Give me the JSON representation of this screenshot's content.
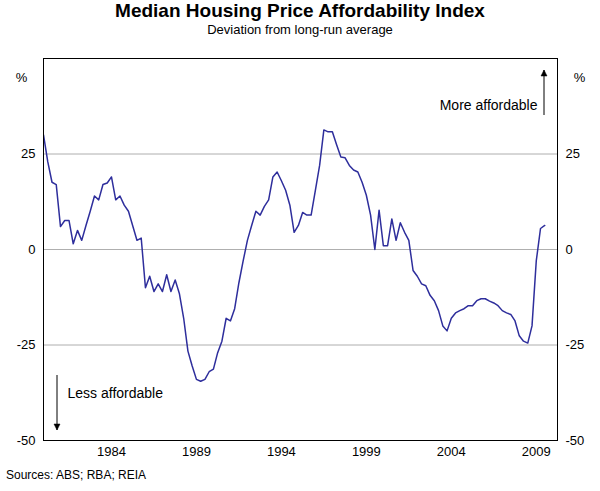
{
  "chart_data": {
    "type": "line",
    "title": "Median Housing Price Affordability Index",
    "subtitle": "Deviation from long-run average",
    "y_label": "%",
    "annotations": [
      "More affordable",
      "Less affordable"
    ],
    "source": "Sources: ABS; RBA; REIA",
    "xlim": [
      1980,
      2010.25
    ],
    "xticks": [
      1984,
      1989,
      1994,
      1999,
      2004,
      2009
    ],
    "ylim": [
      -50,
      50
    ],
    "yticks": [
      -50,
      -25,
      0,
      25
    ],
    "grid": true,
    "x": [
      1980.0,
      1980.25,
      1980.5,
      1980.75,
      1981.0,
      1981.25,
      1981.5,
      1981.75,
      1982.0,
      1982.25,
      1982.5,
      1982.75,
      1983.0,
      1983.25,
      1983.5,
      1983.75,
      1984.0,
      1984.25,
      1984.5,
      1984.75,
      1985.0,
      1985.5,
      1985.75,
      1986.0,
      1986.25,
      1986.5,
      1986.75,
      1987.0,
      1987.25,
      1987.5,
      1987.75,
      1988.0,
      1988.25,
      1988.5,
      1988.75,
      1989.0,
      1989.25,
      1989.5,
      1989.75,
      1990.0,
      1990.25,
      1990.5,
      1990.75,
      1991.0,
      1991.25,
      1991.5,
      1991.75,
      1992.0,
      1992.25,
      1992.5,
      1992.75,
      1993.0,
      1993.25,
      1993.5,
      1993.75,
      1994.0,
      1994.25,
      1994.5,
      1994.75,
      1995.0,
      1995.25,
      1995.5,
      1995.75,
      1996.0,
      1996.25,
      1996.5,
      1996.75,
      1997.0,
      1997.25,
      1997.5,
      1997.75,
      1998.0,
      1998.25,
      1998.5,
      1998.75,
      1999.0,
      1999.25,
      1999.5,
      1999.75,
      2000.0,
      2000.25,
      2000.5,
      2000.75,
      2001.0,
      2001.25,
      2001.5,
      2001.75,
      2002.0,
      2002.25,
      2002.5,
      2002.75,
      2003.0,
      2003.25,
      2003.5,
      2003.75,
      2004.0,
      2004.25,
      2004.5,
      2004.75,
      2005.0,
      2005.25,
      2005.5,
      2005.75,
      2006.0,
      2006.25,
      2006.5,
      2006.75,
      2007.0,
      2007.25,
      2007.5,
      2007.75,
      2008.0,
      2008.25,
      2008.5,
      2008.75,
      2009.0,
      2009.25,
      2009.5
    ],
    "values": [
      30,
      23,
      17.6,
      17,
      6,
      7.6,
      7.6,
      1.5,
      5,
      2.4,
      6.3,
      10,
      14,
      13,
      17,
      17.4,
      19,
      13,
      14,
      11.6,
      10,
      2.4,
      3,
      -10,
      -7,
      -11,
      -9,
      -11,
      -6.6,
      -11,
      -8,
      -11.6,
      -18,
      -26.6,
      -30.5,
      -34,
      -34.5,
      -34,
      -32,
      -31.3,
      -27,
      -24,
      -18,
      -18.7,
      -15.5,
      -8.7,
      -3,
      2.4,
      6.3,
      10,
      9,
      11.3,
      13,
      19,
      20.3,
      18,
      15.5,
      11.6,
      4.5,
      6.3,
      9.7,
      9,
      9,
      15.5,
      22,
      31.3,
      30.8,
      30.8,
      27.4,
      24.2,
      24,
      22,
      20.8,
      20.3,
      17.6,
      14.2,
      9,
      0,
      10.3,
      1,
      1,
      8,
      2.4,
      7,
      4.5,
      2.4,
      -5.5,
      -7,
      -9,
      -9.5,
      -12,
      -13.4,
      -16,
      -20,
      -21.3,
      -18,
      -16.6,
      -16,
      -15.5,
      -14.7,
      -14.7,
      -13.4,
      -12.9,
      -12.9,
      -13.5,
      -14,
      -14.7,
      -16,
      -16.6,
      -17,
      -18.7,
      -22.6,
      -24,
      -24.5,
      -20,
      -3,
      5.5,
      6.3
    ],
    "color": "#2e2e9c"
  }
}
